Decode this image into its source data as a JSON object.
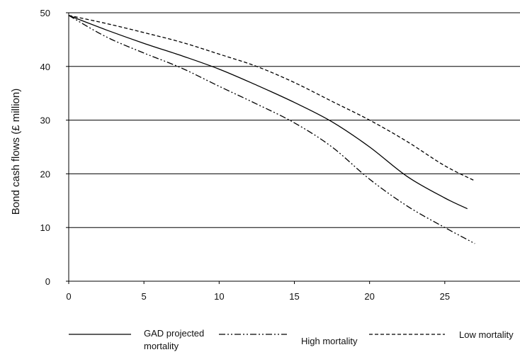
{
  "chart_data": {
    "type": "line",
    "title": "",
    "xlabel": "",
    "ylabel": "Bond cash flows (£ million)",
    "xlim": [
      0,
      30
    ],
    "ylim": [
      0,
      50
    ],
    "x_ticks": [
      "0",
      "5",
      "10",
      "15",
      "20",
      "25"
    ],
    "y_ticks": [
      "0",
      "10",
      "20",
      "30",
      "40",
      "50"
    ],
    "grid": "horizontal",
    "legend_position": "bottom",
    "series": [
      {
        "name": "GAD projected mortality",
        "style": "solid",
        "color": "#000000",
        "x": [
          0,
          2.5,
          5,
          7.5,
          10,
          12.5,
          15,
          17.5,
          20,
          22.5,
          25,
          26.5
        ],
        "y": [
          49.5,
          46.8,
          44.3,
          42.0,
          39.5,
          36.5,
          33.3,
          29.7,
          25.0,
          19.5,
          15.5,
          13.5
        ]
      },
      {
        "name": "High mortality",
        "style": "dash-dot-dot",
        "color": "#000000",
        "x": [
          0,
          2.5,
          5,
          7.5,
          10,
          12.5,
          15,
          17.5,
          20,
          22.5,
          25,
          27
        ],
        "y": [
          49.5,
          45.5,
          42.5,
          39.7,
          36.3,
          33.0,
          29.5,
          25.0,
          19.0,
          14.0,
          10.0,
          7.0
        ]
      },
      {
        "name": "Low mortality",
        "style": "dashed",
        "color": "#000000",
        "x": [
          0,
          2.5,
          5,
          7.5,
          10,
          12.5,
          15,
          17.5,
          20,
          22.5,
          25,
          27
        ],
        "y": [
          49.5,
          48.0,
          46.3,
          44.5,
          42.3,
          40.0,
          37.0,
          33.5,
          30.0,
          26.0,
          21.5,
          18.7
        ]
      }
    ]
  }
}
